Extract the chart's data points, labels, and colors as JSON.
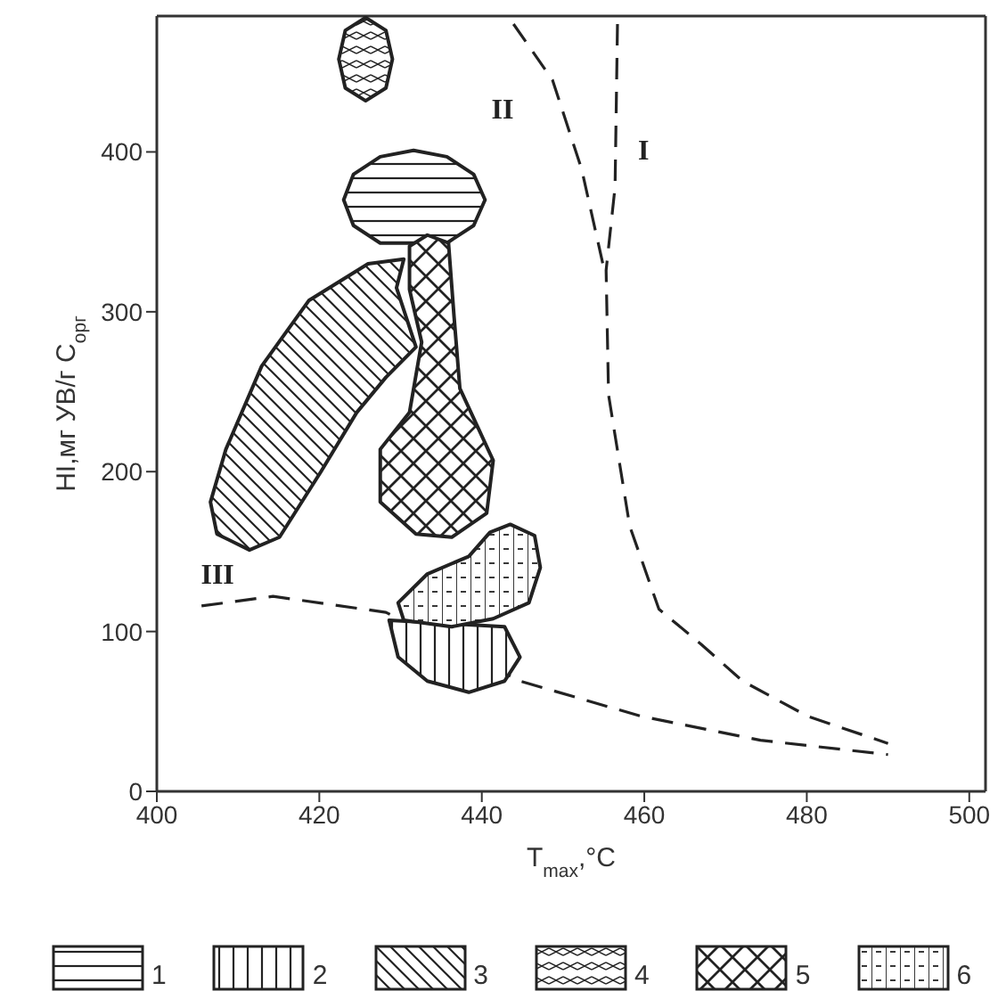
{
  "chart_data": {
    "type": "area",
    "xlabel": "T$_{max}$,°C",
    "ylabel": "HI,мг УВ/г C$_{орг}$",
    "xlim": [
      400,
      502
    ],
    "ylim": [
      0,
      485
    ],
    "xticks": [
      400,
      420,
      440,
      460,
      480,
      500
    ],
    "yticks": [
      0,
      100,
      200,
      300,
      400
    ],
    "legend": "bottom",
    "marker": "none",
    "series": [
      {
        "name": "I",
        "type": "line",
        "line_style": "dashed",
        "color": "#222222",
        "x": [
          456.7,
          456.4,
          455.3,
          455.6,
          458.2,
          461.8,
          467,
          472.1,
          480.1,
          490
        ],
        "values": [
          480,
          378,
          326,
          248,
          166,
          114,
          92,
          69,
          47,
          30
        ]
      },
      {
        "name": "II",
        "type": "line",
        "line_style": "dashed",
        "color": "#222222",
        "x": [
          443.9,
          448.7,
          452.3,
          454.9
        ],
        "values": [
          480,
          445,
          389,
          330
        ]
      },
      {
        "name": "III",
        "type": "line",
        "line_style": "dashed",
        "color": "#222222",
        "x": [
          405.5,
          414.3,
          428.2,
          444.7,
          459.6,
          474.3,
          490
        ],
        "values": [
          116,
          122,
          112,
          69,
          47,
          32,
          23
        ]
      },
      {
        "name": "1",
        "color": "#222222",
        "x": [
          423.0,
          424.2,
          427.5,
          431.6,
          435.7,
          439.0,
          440.4,
          439.0,
          435.7,
          427.5,
          424.2
        ],
        "values": [
          370,
          386,
          397,
          401,
          397,
          386,
          370,
          354,
          343,
          343,
          354
        ]
      },
      {
        "name": "2",
        "color": "#222222",
        "x": [
          428.6,
          442.8,
          444.7,
          442.8,
          438.4,
          433.3,
          429.7
        ],
        "values": [
          107,
          103,
          84,
          69,
          62,
          69,
          84
        ]
      },
      {
        "name": "3",
        "color": "#222222",
        "x": [
          406.6,
          408.5,
          412.9,
          418.7,
          426.0,
          430.4,
          429.5,
          431.9,
          428.2,
          424.6,
          420.2,
          415.1,
          411.4,
          407.4
        ],
        "values": [
          181,
          214,
          266,
          307,
          330,
          333,
          315,
          278,
          259,
          237,
          200,
          159,
          151,
          161
        ]
      },
      {
        "name": "4",
        "color": "#222222",
        "x": [
          422.4,
          423.2,
          425.7,
          428.2,
          429.0,
          428.2,
          425.7,
          423.2
        ],
        "values": [
          458,
          476,
          484,
          476,
          458,
          440,
          432,
          440
        ]
      },
      {
        "name": "5",
        "color": "#222222",
        "x": [
          431.1,
          433.3,
          435.9,
          436.6,
          437.3,
          441.4,
          440.6,
          436.3,
          431.9,
          427.5,
          427.5,
          431.1,
          432.6,
          431.1
        ],
        "values": [
          341,
          348,
          343,
          296,
          252,
          207,
          174,
          159,
          161,
          181,
          214,
          237,
          281,
          314
        ]
      },
      {
        "name": "6",
        "color": "#222222",
        "x": [
          429.7,
          433.3,
          438.4,
          441,
          443.5,
          446.5,
          447.2,
          445.8,
          441.4,
          436.3,
          430.4
        ],
        "values": [
          118,
          136,
          147,
          162,
          167,
          160,
          140,
          118,
          108,
          103,
          107
        ]
      }
    ]
  }
}
